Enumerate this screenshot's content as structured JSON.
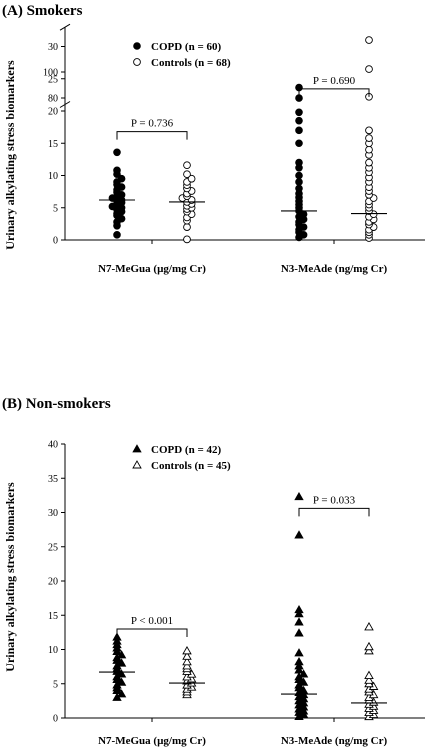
{
  "chart_data": [
    {
      "type": "scatter",
      "panel_title": "(A) Smokers",
      "ylabel": "Urinary alkylating stress biomarkers",
      "categories": [
        "N7-MeGua (µg/mg Cr)",
        "N3-MeAde (ng/mg Cr)"
      ],
      "ylim": [
        0,
        100
      ],
      "yticks": [
        0,
        5,
        10,
        15,
        20,
        25,
        30,
        80,
        100
      ],
      "axis_break": [
        33,
        75
      ],
      "series": [
        {
          "name": "COPD (n = 60)",
          "marker": "filled-circle",
          "group_values": [
            [
              0.8,
              2.2,
              2.8,
              3.3,
              3.8,
              4.1,
              4.4,
              4.7,
              5.0,
              5.2,
              5.5,
              5.8,
              6.0,
              6.2,
              6.5,
              6.8,
              7.0,
              7.4,
              7.8,
              8.2,
              8.6,
              9.0,
              9.5,
              10.2,
              10.8,
              13.6
            ],
            [
              0.4,
              0.8,
              1.2,
              1.6,
              2.0,
              2.4,
              2.8,
              3.2,
              3.6,
              4.0,
              4.5,
              5.0,
              5.5,
              6.0,
              6.6,
              7.2,
              8.0,
              9.0,
              10.0,
              11.2,
              12.0,
              15.0,
              17.0,
              18.5,
              19.8,
              22.0,
              88
            ]
          ],
          "medians": [
            6.2,
            4.5
          ]
        },
        {
          "name": "Controls (n = 68)",
          "marker": "open-circle",
          "group_values": [
            [
              0.1,
              2.0,
              3.0,
              3.5,
              4.0,
              4.4,
              4.8,
              5.0,
              5.3,
              5.6,
              5.9,
              6.2,
              6.5,
              6.8,
              7.2,
              7.6,
              8.0,
              8.5,
              9.0,
              9.5,
              10.2,
              11.6
            ],
            [
              0.3,
              0.8,
              1.2,
              1.6,
              2.0,
              2.4,
              2.8,
              3.2,
              3.6,
              4.0,
              4.5,
              5.0,
              5.5,
              6.0,
              6.5,
              7.0,
              7.6,
              8.2,
              9.0,
              9.7,
              10.5,
              11.2,
              12.0,
              13.2,
              14.0,
              15.0,
              15.8,
              17.0,
              22.2,
              26.5,
              31.0
            ]
          ],
          "medians": [
            5.9,
            4.1
          ]
        }
      ],
      "comparisons": [
        {
          "category": 0,
          "label": "P = 0.736",
          "y": 16.8
        },
        {
          "category": 1,
          "label": "P = 0.690",
          "y": 87
        }
      ],
      "legend": "top-left",
      "grid": false
    },
    {
      "type": "scatter",
      "panel_title": "(B) Non-smokers",
      "ylabel": "Urinary alkylating stress biomarkers",
      "categories": [
        "N7-MeGua (µg/mg Cr)",
        "N3-MeAde (ng/mg Cr)"
      ],
      "ylim": [
        0,
        40
      ],
      "yticks": [
        0,
        5,
        10,
        15,
        20,
        25,
        30,
        35,
        40
      ],
      "series": [
        {
          "name": "COPD (n = 42)",
          "marker": "filled-triangle",
          "group_values": [
            [
              3.0,
              3.5,
              4.0,
              4.4,
              4.8,
              5.2,
              5.6,
              6.0,
              6.4,
              6.8,
              7.2,
              7.6,
              8.0,
              8.4,
              8.8,
              9.2,
              9.7,
              10.2,
              10.7,
              11.2,
              11.8
            ],
            [
              0.2,
              0.5,
              0.8,
              1.0,
              1.3,
              1.6,
              1.9,
              2.2,
              2.5,
              2.8,
              3.1,
              3.4,
              3.7,
              4.0,
              4.4,
              4.8,
              5.2,
              5.6,
              6.0,
              6.4,
              7.0,
              7.6,
              8.2,
              9.5,
              12.4,
              14.0,
              15.2,
              15.8,
              26.7,
              32.3
            ]
          ],
          "medians": [
            6.7,
            3.5
          ]
        },
        {
          "name": "Controls (n = 45)",
          "marker": "open-triangle",
          "group_values": [
            [
              3.4,
              3.8,
              4.2,
              4.5,
              4.8,
              5.1,
              5.4,
              5.7,
              6.0,
              6.4,
              6.8,
              7.2,
              7.6,
              8.2,
              9.0,
              9.8
            ],
            [
              0.2,
              0.5,
              0.8,
              1.1,
              1.4,
              1.7,
              2.0,
              2.3,
              2.6,
              3.0,
              3.4,
              3.8,
              4.2,
              4.6,
              5.0,
              5.5,
              6.2,
              9.8,
              10.4,
              13.3
            ]
          ],
          "medians": [
            5.1,
            2.2
          ]
        }
      ],
      "comparisons": [
        {
          "category": 0,
          "label": "P < 0.001",
          "y": 13.0
        },
        {
          "category": 1,
          "label": "P = 0.033",
          "y": 30.6
        }
      ],
      "legend": "top-left",
      "grid": false
    }
  ]
}
